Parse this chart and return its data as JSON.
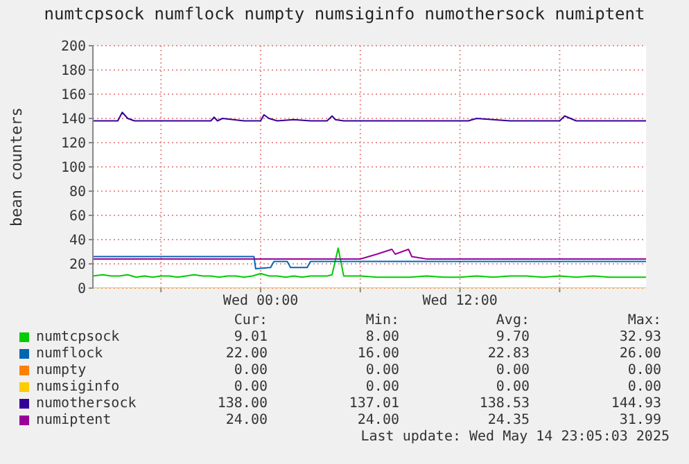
{
  "chart_data": {
    "type": "line",
    "title": "numtcpsock numflock numpty numsiginfo numothersock numiptent",
    "ylabel": "bean counters",
    "xlim": [
      "2025-05-13T13:54",
      "2025-05-14T23:12"
    ],
    "xticks": [
      {
        "value": "2025-05-13T18:00",
        "label": null
      },
      {
        "value": "2025-05-14T00:00",
        "label": "Wed 00:00"
      },
      {
        "value": "2025-05-14T06:00",
        "label": null
      },
      {
        "value": "2025-05-14T12:00",
        "label": "Wed 12:00"
      },
      {
        "value": "2025-05-14T18:00",
        "label": null
      }
    ],
    "ylim": [
      0,
      200
    ],
    "yticks": [
      0,
      20,
      40,
      60,
      80,
      100,
      120,
      140,
      160,
      180,
      200
    ],
    "grid": true,
    "legend": "bottom",
    "marker": "none",
    "line_style": "solid",
    "series": [
      {
        "name": "numtcpsock",
        "color": "#00cc00",
        "x": [
          "2025-05-13T13:54",
          "2025-05-13T14:30",
          "2025-05-13T15:00",
          "2025-05-13T15:30",
          "2025-05-13T16:00",
          "2025-05-13T16:30",
          "2025-05-13T17:00",
          "2025-05-13T17:30",
          "2025-05-13T18:00",
          "2025-05-13T18:30",
          "2025-05-13T19:00",
          "2025-05-13T19:30",
          "2025-05-13T20:00",
          "2025-05-13T20:30",
          "2025-05-13T21:00",
          "2025-05-13T21:30",
          "2025-05-13T22:00",
          "2025-05-13T22:30",
          "2025-05-13T23:00",
          "2025-05-13T23:30",
          "2025-05-14T00:00",
          "2025-05-14T00:30",
          "2025-05-14T01:00",
          "2025-05-14T01:30",
          "2025-05-14T02:00",
          "2025-05-14T02:30",
          "2025-05-14T03:00",
          "2025-05-14T03:30",
          "2025-05-14T04:00",
          "2025-05-14T04:18",
          "2025-05-14T04:40",
          "2025-05-14T05:00",
          "2025-05-14T05:30",
          "2025-05-14T06:00",
          "2025-05-14T07:00",
          "2025-05-14T08:00",
          "2025-05-14T09:00",
          "2025-05-14T10:00",
          "2025-05-14T11:00",
          "2025-05-14T12:00",
          "2025-05-14T13:00",
          "2025-05-14T14:00",
          "2025-05-14T15:00",
          "2025-05-14T16:00",
          "2025-05-14T17:00",
          "2025-05-14T18:00",
          "2025-05-14T19:00",
          "2025-05-14T20:00",
          "2025-05-14T21:00",
          "2025-05-14T22:00",
          "2025-05-14T23:00",
          "2025-05-14T23:12"
        ],
        "values": [
          10,
          11,
          10,
          10,
          11,
          9,
          10,
          9,
          10,
          10,
          9,
          10,
          11,
          10,
          10,
          9,
          10,
          10,
          9,
          10,
          12,
          10,
          10,
          9,
          10,
          9,
          10,
          10,
          10,
          11,
          33,
          10,
          10,
          10,
          9,
          9,
          9,
          10,
          9,
          9,
          10,
          9,
          10,
          10,
          9,
          10,
          9,
          10,
          9,
          9,
          9,
          9
        ]
      },
      {
        "name": "numflock",
        "color": "#0066b3",
        "x": [
          "2025-05-13T13:54",
          "2025-05-13T23:36",
          "2025-05-13T23:42",
          "2025-05-14T00:36",
          "2025-05-14T00:48",
          "2025-05-14T01:36",
          "2025-05-14T01:48",
          "2025-05-14T02:48",
          "2025-05-14T03:00",
          "2025-05-14T23:12"
        ],
        "values": [
          26,
          26,
          16,
          17,
          22,
          22,
          17,
          17,
          22,
          22
        ]
      },
      {
        "name": "numpty",
        "color": "#ff8000"
      },
      {
        "name": "numsiginfo",
        "color": "#ffcc00",
        "x": [
          "2025-05-13T13:54",
          "2025-05-14T23:12"
        ],
        "values": [
          0,
          0
        ]
      },
      {
        "name": "numothersock",
        "color": "#330099",
        "x": [
          "2025-05-13T13:54",
          "2025-05-13T15:24",
          "2025-05-13T15:40",
          "2025-05-13T16:00",
          "2025-05-13T16:24",
          "2025-05-13T21:00",
          "2025-05-13T21:12",
          "2025-05-13T21:24",
          "2025-05-13T21:42",
          "2025-05-13T23:00",
          "2025-05-14T00:00",
          "2025-05-14T00:12",
          "2025-05-14T00:30",
          "2025-05-14T01:00",
          "2025-05-14T02:00",
          "2025-05-14T03:00",
          "2025-05-14T04:00",
          "2025-05-14T04:18",
          "2025-05-14T04:30",
          "2025-05-14T05:00",
          "2025-05-14T07:00",
          "2025-05-14T09:00",
          "2025-05-14T11:00",
          "2025-05-14T12:30",
          "2025-05-14T13:00",
          "2025-05-14T15:00",
          "2025-05-14T17:00",
          "2025-05-14T18:00",
          "2025-05-14T18:18",
          "2025-05-14T19:00",
          "2025-05-14T21:00",
          "2025-05-14T22:00",
          "2025-05-14T23:12"
        ],
        "values": [
          138,
          138,
          145,
          140,
          138,
          138,
          141,
          138,
          140,
          138,
          138,
          143,
          140,
          138,
          139,
          138,
          138,
          142,
          139,
          138,
          138,
          138,
          138,
          138,
          140,
          138,
          138,
          138,
          142,
          138,
          138,
          138,
          138
        ]
      },
      {
        "name": "numiptent",
        "color": "#990099",
        "x": [
          "2025-05-13T13:54",
          "2025-05-14T06:00",
          "2025-05-14T07:00",
          "2025-05-14T07:54",
          "2025-05-14T08:06",
          "2025-05-14T08:54",
          "2025-05-14T09:06",
          "2025-05-14T10:00",
          "2025-05-14T23:12"
        ],
        "values": [
          24,
          24,
          28,
          32,
          28,
          32,
          26,
          24,
          24
        ]
      }
    ],
    "annotations": [
      "Cur:",
      "Min:",
      "Avg:",
      "Max:",
      "9.01",
      "8.00",
      "9.70",
      "32.93",
      "22.00",
      "16.00",
      "22.83",
      "26.00",
      "0.00",
      "0.00",
      "0.00",
      "0.00",
      "0.00",
      "0.00",
      "0.00",
      "0.00",
      "138.00",
      "137.01",
      "138.53",
      "144.93",
      "24.00",
      "24.00",
      "24.35",
      "31.99",
      "Last update: Wed May 14 23:05:03 2025"
    ]
  }
}
